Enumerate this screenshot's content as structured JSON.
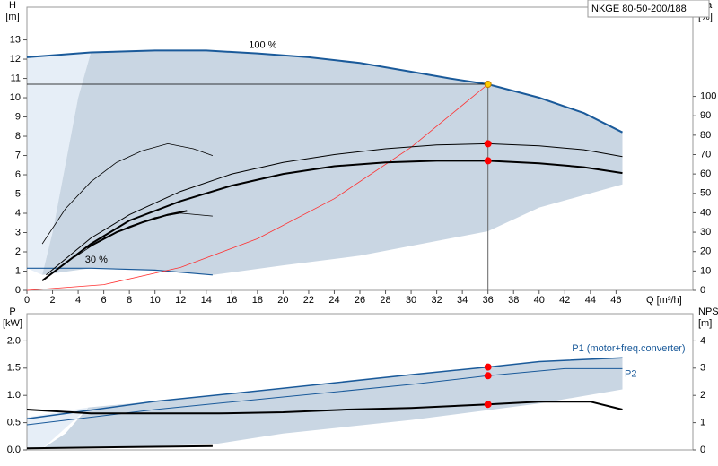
{
  "chart_data": [
    {
      "type": "line",
      "model": "NKGE 80-50-200/188",
      "x_label": "Q [m³/h]",
      "y_label": "H",
      "y_unit": "[m]",
      "y2_label": "eta",
      "y2_unit": "[%]",
      "xlim": [
        0,
        52
      ],
      "ylim": [
        0,
        14.7
      ],
      "y2lim": [
        0,
        146
      ],
      "xticks": [
        0,
        2,
        4,
        6,
        8,
        10,
        12,
        14,
        16,
        18,
        20,
        22,
        24,
        26,
        28,
        30,
        32,
        34,
        36,
        38,
        40,
        42,
        44,
        46
      ],
      "yticks": [
        0,
        1,
        2,
        3,
        4,
        5,
        6,
        7,
        8,
        9,
        10,
        11,
        12,
        13
      ],
      "y2ticks": [
        0,
        10,
        20,
        30,
        40,
        50,
        60,
        70,
        80,
        90,
        100
      ],
      "series": [
        {
          "x": [
            0,
            0,
            5,
            4,
            3,
            2,
            1.2
          ],
          "values": [
            1.15,
            12.1,
            12.35,
            10,
            6.5,
            3,
            0.8
          ],
          "fill": "#e6eef7"
        },
        {
          "x": [
            1.2,
            2,
            3,
            4,
            5,
            10,
            14,
            18,
            22,
            26,
            30,
            33,
            36,
            40,
            43.5,
            46.5,
            46.5,
            40,
            36,
            26,
            20,
            14.5,
            10,
            5
          ],
          "values": [
            0.8,
            3,
            6.5,
            10,
            12.35,
            12.45,
            12.45,
            12.3,
            12.1,
            11.8,
            11.35,
            11.0,
            10.7,
            10.0,
            9.2,
            8.2,
            5.5,
            4.3,
            3.07,
            1.8,
            1.3,
            0.8,
            1.05,
            1.15
          ],
          "fill": "#c9d6e3"
        },
        {
          "name": "100 %",
          "x": [
            0,
            5,
            10,
            14,
            18,
            22,
            26,
            30,
            33,
            36,
            40,
            43.5,
            46.5
          ],
          "values": [
            12.1,
            12.35,
            12.45,
            12.45,
            12.3,
            12.1,
            11.8,
            11.35,
            11.0,
            10.7,
            10.0,
            9.2,
            8.2
          ],
          "color": "#1a5a9a",
          "width": 2
        },
        {
          "name": "30 %",
          "x": [
            0,
            5,
            10,
            14.5
          ],
          "values": [
            1.15,
            1.15,
            1.05,
            0.8
          ],
          "color": "#1a5a9a",
          "width": 1.2
        },
        {
          "x": [
            0,
            6,
            12,
            18,
            24,
            30,
            36
          ],
          "values": [
            0,
            0.3,
            1.19,
            2.68,
            4.76,
            7.43,
            10.7
          ],
          "color": "#ff3030",
          "width": 0.8
        },
        {
          "axis": "y2",
          "x": [
            1.5,
            5,
            8,
            12,
            16,
            20,
            24,
            28,
            32,
            36,
            40,
            43.5,
            46.5
          ],
          "values": [
            8,
            27,
            39,
            51,
            60,
            66,
            70,
            73,
            75,
            75.6,
            74.5,
            72.5,
            69
          ],
          "color": "#000000",
          "width": 1
        },
        {
          "axis": "y2",
          "x": [
            1.2,
            5,
            8,
            12,
            16,
            20,
            24,
            28,
            32,
            36,
            40,
            43.5,
            46.5
          ],
          "values": [
            5,
            24,
            36,
            46,
            54,
            60,
            64,
            66,
            66.8,
            66.8,
            65.5,
            63.5,
            60.5
          ],
          "color": "#000000",
          "width": 2
        },
        {
          "axis": "y2",
          "x": [
            1.2,
            3,
            5,
            7,
            9,
            11,
            13,
            14.5
          ],
          "values": [
            24,
            42,
            56,
            66,
            72,
            75.6,
            73,
            69.5
          ],
          "color": "#000000",
          "width": 0.8
        },
        {
          "axis": "y2",
          "x": [
            3.7,
            6,
            8,
            10,
            12,
            14.5
          ],
          "values": [
            17,
            27,
            33,
            37.5,
            39.8,
            38.3
          ],
          "color": "#000000",
          "width": 0.8
        },
        {
          "axis": "y2",
          "x": [
            4.7,
            7,
            9,
            11,
            12.5
          ],
          "values": [
            22,
            30,
            35,
            39,
            41
          ],
          "color": "#000000",
          "width": 2
        },
        {
          "x": [
            0,
            36
          ],
          "values": [
            10.7,
            10.7
          ],
          "color": "#000000",
          "width": 0.8
        },
        {
          "x": [
            36,
            36
          ],
          "values": [
            10.7,
            0
          ],
          "color": "#666666",
          "width": 1
        }
      ],
      "markers": [
        {
          "x": 36,
          "y": 10.7,
          "color": "#ffcc00"
        },
        {
          "x": 36,
          "y": 75.6,
          "axis": "y2",
          "color": "#ff0000"
        },
        {
          "x": 36,
          "y": 66.8,
          "axis": "y2",
          "color": "#ff0000"
        }
      ]
    },
    {
      "type": "line",
      "y_label": "P",
      "y_unit": "[kW]",
      "y2_label": "NPSH",
      "y2_unit": "[m]",
      "xlim": [
        0,
        52
      ],
      "ylim": [
        0,
        2.5
      ],
      "y2lim": [
        0,
        5
      ],
      "yticks": [
        {
          "value": 0,
          "label": "0.0"
        },
        {
          "value": 0.5,
          "label": "0.5"
        },
        {
          "value": 1,
          "label": "1.0"
        },
        {
          "value": 1.5,
          "label": "1.5"
        },
        {
          "value": 2,
          "label": "2.0"
        }
      ],
      "y2ticks": [
        0,
        1,
        2,
        3,
        4
      ],
      "series": [
        {
          "x": [
            0,
            0,
            4.8,
            1.2
          ],
          "values": [
            0.03,
            0.6,
            0.78,
            0.02
          ],
          "fill": "#e6eef7"
        },
        {
          "x": [
            1.2,
            3,
            4.8,
            10,
            20,
            30,
            36,
            40,
            46.5,
            46.5,
            40,
            30,
            20,
            14.5,
            5
          ],
          "values": [
            0.02,
            0.3,
            0.78,
            0.89,
            1.13,
            1.38,
            1.52,
            1.62,
            1.69,
            1.11,
            0.85,
            0.55,
            0.3,
            0.1,
            0.04
          ],
          "fill": "#c9d6e3"
        },
        {
          "name": "P1 (motor+freq.converter)",
          "x": [
            0,
            10,
            20,
            30,
            36,
            40,
            46.5
          ],
          "values": [
            0.57,
            0.89,
            1.13,
            1.38,
            1.52,
            1.62,
            1.69
          ],
          "color": "#1a5a9a",
          "width": 1.5
        },
        {
          "name": "P2",
          "x": [
            0,
            10,
            20,
            30,
            36,
            42,
            46.5
          ],
          "values": [
            0.46,
            0.74,
            0.97,
            1.2,
            1.36,
            1.49,
            1.49
          ],
          "color": "#1a5a9a",
          "width": 1
        },
        {
          "axis": "y2",
          "x": [
            0,
            5,
            10,
            15,
            20,
            25,
            30,
            36,
            40,
            44,
            46.5
          ],
          "values": [
            1.48,
            1.34,
            1.34,
            1.34,
            1.38,
            1.48,
            1.54,
            1.67,
            1.77,
            1.77,
            1.48
          ],
          "color": "#000000",
          "width": 2
        },
        {
          "x": [
            0,
            14.5
          ],
          "values": [
            0.03,
            0.07
          ],
          "color": "#000000",
          "width": 2
        }
      ],
      "markers": [
        {
          "x": 36,
          "y": 1.52,
          "color": "#ff0000"
        },
        {
          "x": 36,
          "y": 1.36,
          "color": "#ff0000"
        },
        {
          "x": 36,
          "y": 1.67,
          "axis": "y2",
          "color": "#ff0000"
        }
      ]
    }
  ]
}
